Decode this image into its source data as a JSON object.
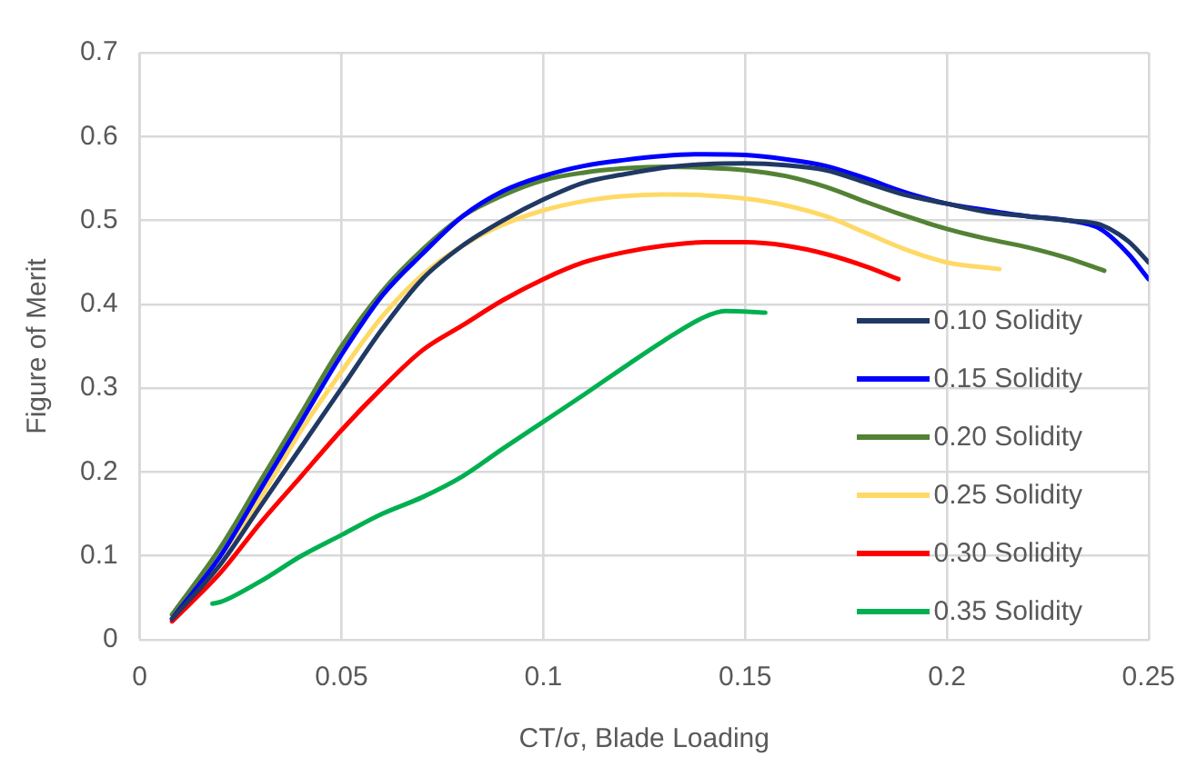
{
  "chart_data": {
    "type": "line",
    "xlabel": "CT/σ, Blade Loading",
    "ylabel": "Figure of Merit",
    "xlim": [
      0,
      0.25
    ],
    "xticks": [
      0,
      0.05,
      0.1,
      0.15,
      0.2,
      0.25
    ],
    "ylim": [
      0,
      0.7
    ],
    "yticks": [
      0,
      0.1,
      0.2,
      0.3,
      0.4,
      0.5,
      0.6,
      0.7
    ],
    "grid": true,
    "legend": "right",
    "marker": "none",
    "line_style": "solid",
    "series": [
      {
        "name": "0.10 Solidity",
        "color": "#203864",
        "x": [
          0.008,
          0.02,
          0.03,
          0.04,
          0.05,
          0.06,
          0.07,
          0.08,
          0.09,
          0.1,
          0.11,
          0.12,
          0.13,
          0.14,
          0.15,
          0.16,
          0.17,
          0.18,
          0.19,
          0.2,
          0.21,
          0.22,
          0.23,
          0.238,
          0.245,
          0.25
        ],
        "values": [
          0.025,
          0.09,
          0.16,
          0.23,
          0.3,
          0.37,
          0.43,
          0.47,
          0.5,
          0.525,
          0.545,
          0.555,
          0.563,
          0.567,
          0.568,
          0.566,
          0.56,
          0.545,
          0.53,
          0.52,
          0.51,
          0.505,
          0.5,
          0.495,
          0.475,
          0.45
        ]
      },
      {
        "name": "0.15 Solidity",
        "color": "#0000ff",
        "x": [
          0.008,
          0.02,
          0.03,
          0.04,
          0.05,
          0.06,
          0.07,
          0.08,
          0.09,
          0.1,
          0.11,
          0.12,
          0.13,
          0.14,
          0.15,
          0.16,
          0.17,
          0.18,
          0.19,
          0.2,
          0.21,
          0.22,
          0.23,
          0.238,
          0.245,
          0.25
        ],
        "values": [
          0.025,
          0.1,
          0.18,
          0.26,
          0.34,
          0.41,
          0.46,
          0.505,
          0.535,
          0.553,
          0.565,
          0.572,
          0.577,
          0.579,
          0.578,
          0.573,
          0.565,
          0.55,
          0.533,
          0.52,
          0.512,
          0.505,
          0.5,
          0.49,
          0.46,
          0.43
        ]
      },
      {
        "name": "0.20 Solidity",
        "color": "#548235",
        "x": [
          0.008,
          0.02,
          0.03,
          0.04,
          0.05,
          0.06,
          0.07,
          0.08,
          0.09,
          0.1,
          0.11,
          0.12,
          0.13,
          0.14,
          0.15,
          0.16,
          0.17,
          0.18,
          0.19,
          0.2,
          0.21,
          0.22,
          0.23,
          0.239
        ],
        "values": [
          0.03,
          0.11,
          0.19,
          0.27,
          0.35,
          0.415,
          0.465,
          0.505,
          0.53,
          0.548,
          0.557,
          0.562,
          0.564,
          0.563,
          0.56,
          0.553,
          0.54,
          0.522,
          0.505,
          0.49,
          0.478,
          0.468,
          0.455,
          0.44
        ]
      },
      {
        "name": "0.25 Solidity",
        "color": "#ffd966",
        "x": [
          0.008,
          0.02,
          0.03,
          0.04,
          0.05,
          0.06,
          0.07,
          0.08,
          0.09,
          0.1,
          0.11,
          0.12,
          0.13,
          0.14,
          0.15,
          0.16,
          0.17,
          0.18,
          0.19,
          0.2,
          0.213
        ],
        "values": [
          0.03,
          0.1,
          0.17,
          0.25,
          0.32,
          0.385,
          0.435,
          0.47,
          0.495,
          0.512,
          0.523,
          0.529,
          0.531,
          0.53,
          0.526,
          0.518,
          0.505,
          0.485,
          0.465,
          0.45,
          0.442
        ]
      },
      {
        "name": "0.30 Solidity",
        "color": "#ff0000",
        "x": [
          0.008,
          0.02,
          0.03,
          0.04,
          0.05,
          0.06,
          0.07,
          0.08,
          0.09,
          0.1,
          0.11,
          0.12,
          0.13,
          0.14,
          0.15,
          0.16,
          0.17,
          0.18,
          0.188
        ],
        "values": [
          0.022,
          0.08,
          0.14,
          0.195,
          0.25,
          0.3,
          0.345,
          0.375,
          0.405,
          0.43,
          0.45,
          0.462,
          0.47,
          0.474,
          0.474,
          0.47,
          0.46,
          0.445,
          0.43
        ]
      },
      {
        "name": "0.35 Solidity",
        "color": "#00b050",
        "x": [
          0.018,
          0.02,
          0.03,
          0.04,
          0.05,
          0.06,
          0.07,
          0.08,
          0.09,
          0.1,
          0.11,
          0.12,
          0.13,
          0.14,
          0.145,
          0.155
        ],
        "values": [
          0.043,
          0.045,
          0.07,
          0.1,
          0.125,
          0.15,
          0.17,
          0.195,
          0.228,
          0.26,
          0.292,
          0.325,
          0.357,
          0.385,
          0.392,
          0.39
        ]
      }
    ]
  }
}
